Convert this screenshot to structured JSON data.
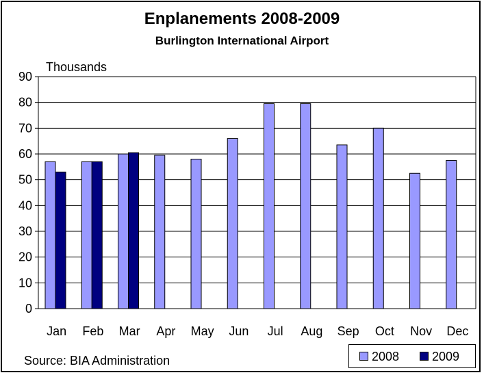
{
  "chart_data": {
    "type": "bar",
    "title": "Enplanements 2008-2009",
    "subtitle": "Burlington International Airport",
    "ylabel": "Thousands",
    "xlabel": "",
    "ylim": [
      0,
      90
    ],
    "yticks": [
      0,
      10,
      20,
      30,
      40,
      50,
      60,
      70,
      80,
      90
    ],
    "grid": true,
    "legend_placement": "bottom-right",
    "categories": [
      "Jan",
      "Feb",
      "Mar",
      "Apr",
      "May",
      "Jun",
      "Jul",
      "Aug",
      "Sep",
      "Oct",
      "Nov",
      "Dec"
    ],
    "series": [
      {
        "name": "2008",
        "color": "#9999ff",
        "values": [
          57,
          57,
          60,
          59.5,
          58,
          66,
          79.5,
          79.5,
          63.5,
          70,
          52.5,
          57.5
        ]
      },
      {
        "name": "2009",
        "color": "#000080",
        "values": [
          53,
          57,
          60.5,
          null,
          null,
          null,
          null,
          null,
          null,
          null,
          null,
          null
        ]
      }
    ]
  },
  "footer": {
    "source": "Source: BIA Administration"
  }
}
